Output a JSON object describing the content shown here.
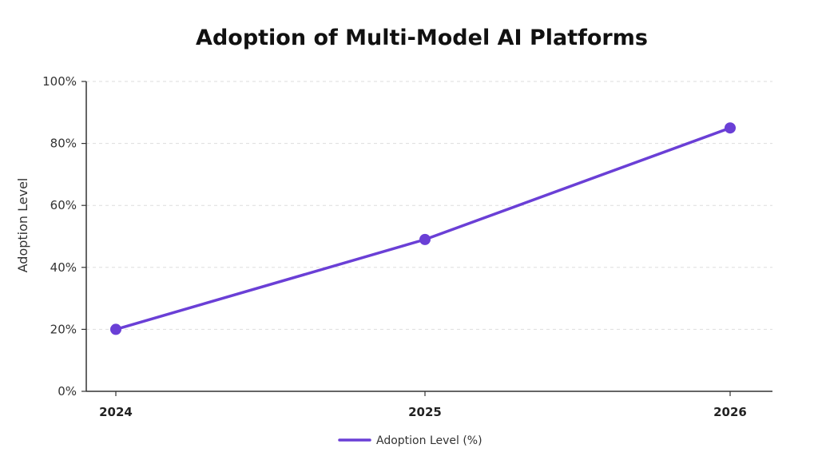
{
  "chart_data": {
    "type": "line",
    "title": "Adoption of Multi-Model AI Platforms",
    "xlabel": "",
    "ylabel": "Adoption Level",
    "categories": [
      "2024",
      "2025",
      "2026"
    ],
    "series": [
      {
        "name": "Adoption Level (%)",
        "values": [
          20,
          49,
          85
        ],
        "color": "#6a3fd6"
      }
    ],
    "ylim": [
      0,
      100
    ],
    "yticks": [
      0,
      20,
      40,
      60,
      80,
      100
    ],
    "ytick_labels": [
      "0%",
      "20%",
      "40%",
      "60%",
      "80%",
      "100%"
    ],
    "grid": true,
    "legend_position": "bottom-center"
  }
}
